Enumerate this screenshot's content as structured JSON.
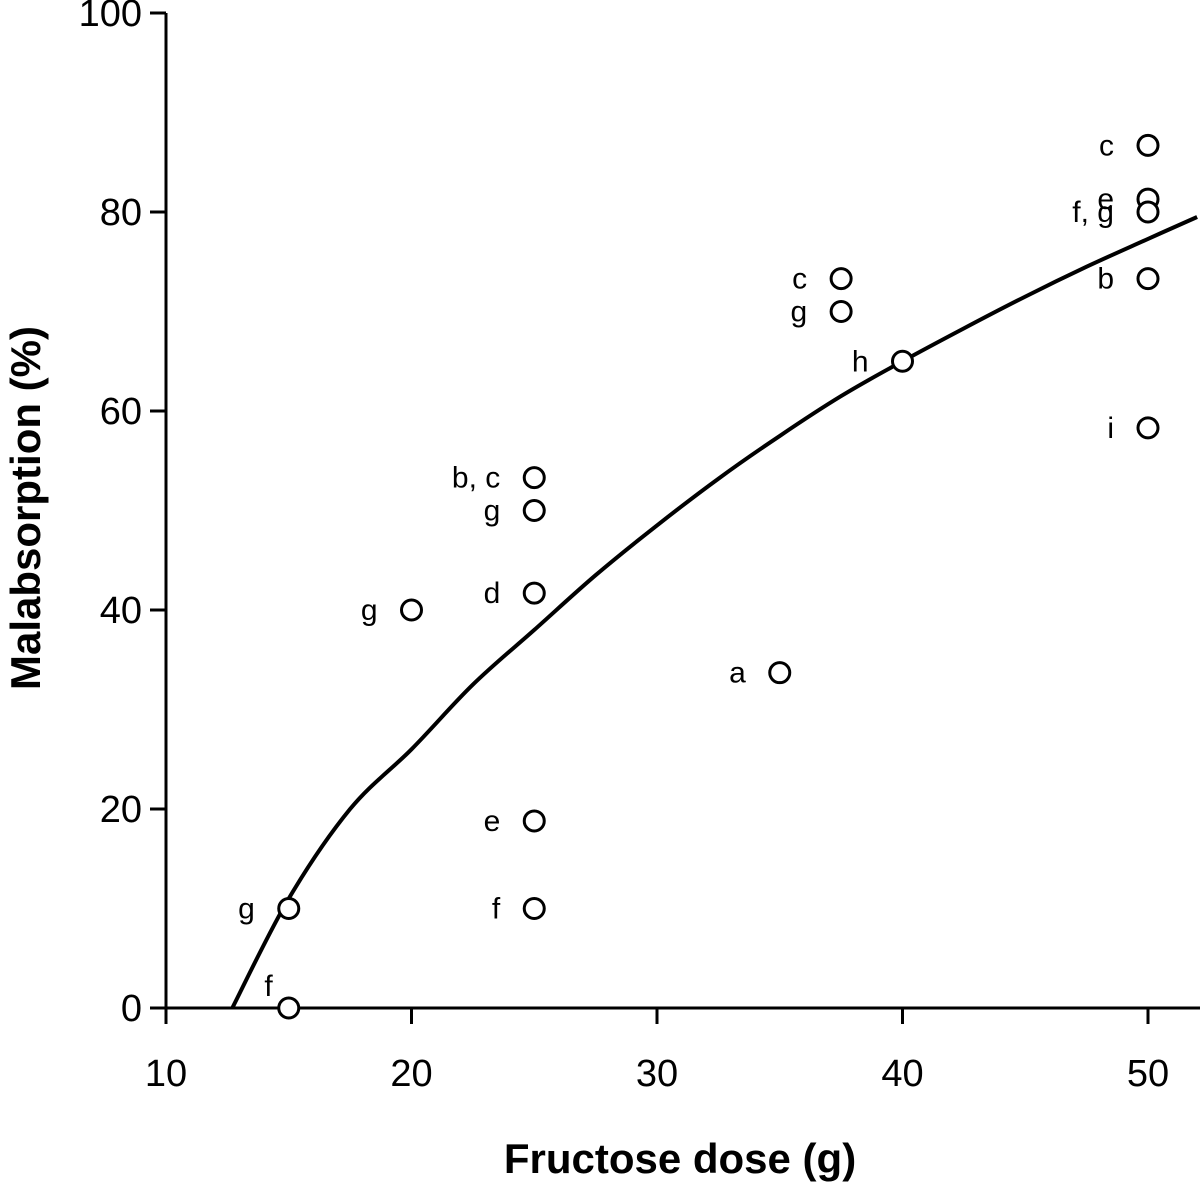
{
  "chart_data": {
    "type": "scatter",
    "xlabel": "Fructose dose (g)",
    "ylabel": "Malabsorption (%)",
    "xlim": [
      10,
      52
    ],
    "ylim": [
      0,
      100
    ],
    "xticks": [
      "10",
      "20",
      "30",
      "40",
      "50"
    ],
    "yticks": [
      "0",
      "20",
      "40",
      "60",
      "80",
      "100"
    ],
    "grid": false,
    "points": [
      {
        "x": 15,
        "y": 0,
        "label": "f"
      },
      {
        "x": 15,
        "y": 10,
        "label": "g"
      },
      {
        "x": 20,
        "y": 40,
        "label": "g"
      },
      {
        "x": 25,
        "y": 53.3,
        "label": "b, c"
      },
      {
        "x": 25,
        "y": 50,
        "label": "g"
      },
      {
        "x": 25,
        "y": 41.7,
        "label": "d"
      },
      {
        "x": 25,
        "y": 18.8,
        "label": "e"
      },
      {
        "x": 25,
        "y": 10,
        "label": "f"
      },
      {
        "x": 35,
        "y": 33.7,
        "label": "a"
      },
      {
        "x": 37.5,
        "y": 73.3,
        "label": "c"
      },
      {
        "x": 37.5,
        "y": 70,
        "label": "g"
      },
      {
        "x": 40,
        "y": 65,
        "label": "h"
      },
      {
        "x": 50,
        "y": 86.7,
        "label": "c"
      },
      {
        "x": 50,
        "y": 81.3,
        "label": "e"
      },
      {
        "x": 50,
        "y": 80,
        "label": "f, g"
      },
      {
        "x": 50,
        "y": 73.3,
        "label": "b"
      },
      {
        "x": 50,
        "y": 58.3,
        "label": "i"
      }
    ],
    "fit_curve": [
      {
        "x": 12.7,
        "y": 0
      },
      {
        "x": 15,
        "y": 11
      },
      {
        "x": 17.5,
        "y": 20
      },
      {
        "x": 20,
        "y": 26
      },
      {
        "x": 22.5,
        "y": 32.5
      },
      {
        "x": 25,
        "y": 38
      },
      {
        "x": 27.5,
        "y": 43.5
      },
      {
        "x": 30,
        "y": 48.5
      },
      {
        "x": 32.5,
        "y": 53.2
      },
      {
        "x": 35,
        "y": 57.5
      },
      {
        "x": 37.5,
        "y": 61.5
      },
      {
        "x": 40,
        "y": 65
      },
      {
        "x": 42.5,
        "y": 68.3
      },
      {
        "x": 45,
        "y": 71.5
      },
      {
        "x": 47.5,
        "y": 74.5
      },
      {
        "x": 50,
        "y": 77.3
      },
      {
        "x": 52,
        "y": 79.5
      }
    ]
  }
}
